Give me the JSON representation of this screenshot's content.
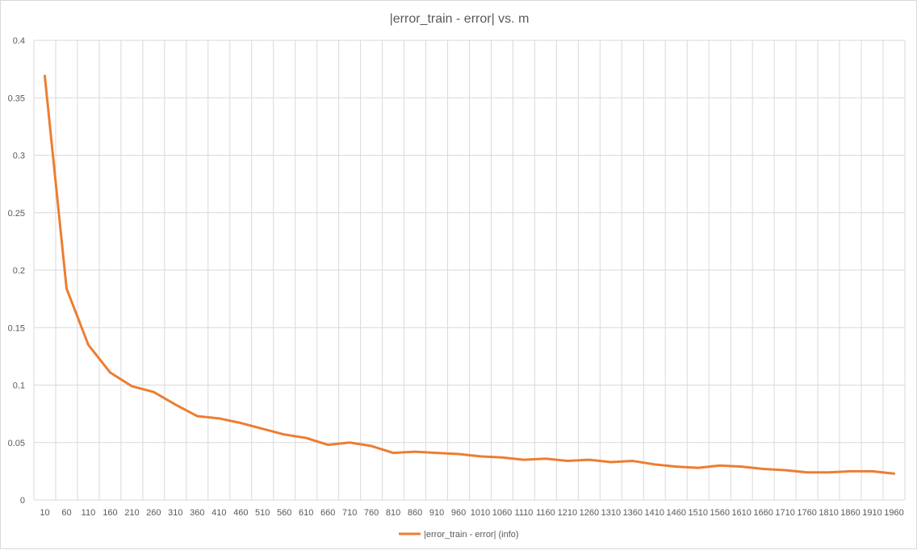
{
  "chart_data": {
    "type": "line",
    "title": "|error_train - error| vs. m",
    "xlabel": "",
    "ylabel": "",
    "ylim": [
      0,
      0.4
    ],
    "yticks": [
      0,
      0.05,
      0.1,
      0.15,
      0.2,
      0.25,
      0.3,
      0.35,
      0.4
    ],
    "ytick_labels": [
      "0",
      "0.05",
      "0.1",
      "0.15",
      "0.2",
      "0.25",
      "0.3",
      "0.35",
      "0.4"
    ],
    "grid": true,
    "legend_position": "bottom",
    "categories": [
      10,
      60,
      110,
      160,
      210,
      260,
      310,
      360,
      410,
      460,
      510,
      560,
      610,
      660,
      710,
      760,
      810,
      860,
      910,
      960,
      1010,
      1060,
      1110,
      1160,
      1210,
      1260,
      1310,
      1360,
      1410,
      1460,
      1510,
      1560,
      1610,
      1660,
      1710,
      1760,
      1810,
      1860,
      1910,
      1960
    ],
    "series": [
      {
        "name": "|error_train - error| (info)",
        "color": "#ed7d31",
        "values": [
          0.369,
          0.184,
          0.135,
          0.111,
          0.099,
          0.094,
          0.083,
          0.073,
          0.071,
          0.067,
          0.062,
          0.057,
          0.054,
          0.048,
          0.05,
          0.047,
          0.041,
          0.042,
          0.041,
          0.04,
          0.038,
          0.037,
          0.035,
          0.036,
          0.034,
          0.035,
          0.033,
          0.034,
          0.031,
          0.029,
          0.028,
          0.03,
          0.029,
          0.027,
          0.026,
          0.024,
          0.024,
          0.025,
          0.025,
          0.023
        ]
      }
    ]
  }
}
